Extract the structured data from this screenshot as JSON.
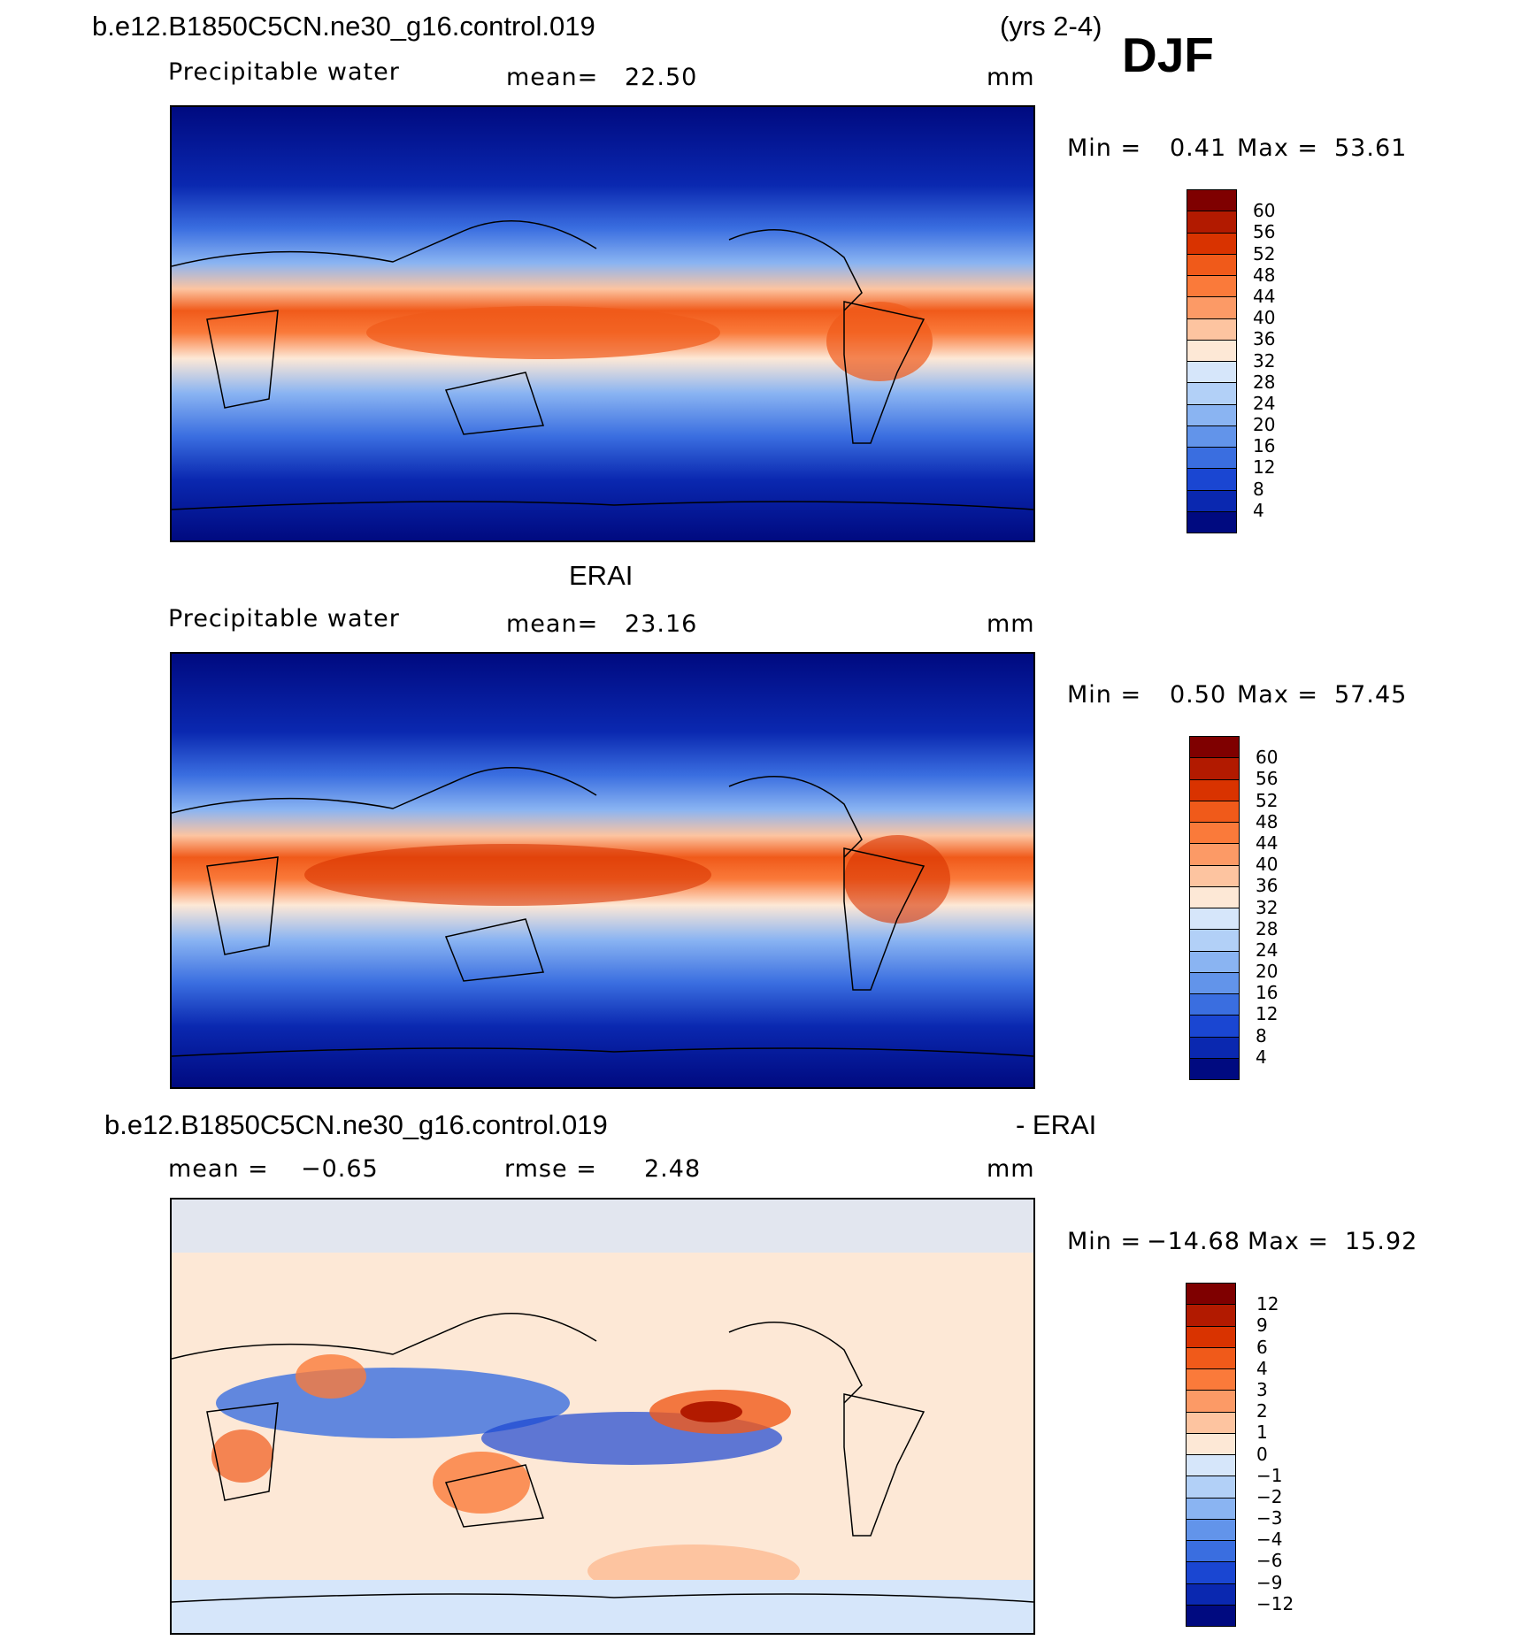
{
  "header": {
    "case_name": "b.e12.B1850C5CN.ne30_g16.control.019",
    "years": "(yrs 2-4)",
    "season": "DJF"
  },
  "panels": [
    {
      "title": "",
      "variable": "Precipitable water",
      "stat_label": "mean=",
      "stat_value": "22.50",
      "stat2_label": "",
      "stat2_value": "",
      "units": "mm",
      "min_label": "Min =",
      "min_value": "0.41",
      "max_label": "Max =",
      "max_value": "53.61",
      "colorbar_labels": [
        "60",
        "56",
        "52",
        "48",
        "44",
        "40",
        "36",
        "32",
        "28",
        "24",
        "20",
        "16",
        "12",
        "8",
        "4"
      ]
    },
    {
      "title": "ERAI",
      "variable": "Precipitable water",
      "stat_label": "mean=",
      "stat_value": "23.16",
      "stat2_label": "",
      "stat2_value": "",
      "units": "mm",
      "min_label": "Min =",
      "min_value": "0.50",
      "max_label": "Max =",
      "max_value": "57.45",
      "colorbar_labels": [
        "60",
        "56",
        "52",
        "48",
        "44",
        "40",
        "36",
        "32",
        "28",
        "24",
        "20",
        "16",
        "12",
        "8",
        "4"
      ]
    },
    {
      "title": "b.e12.B1850C5CN.ne30_g16.control.019",
      "title_suffix": "- ERAI",
      "variable": "",
      "stat_label": "mean =",
      "stat_value": "−0.65",
      "stat2_label": "rmse =",
      "stat2_value": "2.48",
      "units": "mm",
      "min_label": "Min =",
      "min_value": "−14.68",
      "max_label": "Max =",
      "max_value": "15.92",
      "colorbar_labels": [
        "12",
        "9",
        "6",
        "4",
        "3",
        "2",
        "1",
        "0",
        "−1",
        "−2",
        "−3",
        "−4",
        "−6",
        "−9",
        "−12"
      ]
    }
  ],
  "colors": {
    "abs_scale": [
      "#7f0000",
      "#b21a00",
      "#d93300",
      "#f05a1a",
      "#fa7a3a",
      "#fc9a66",
      "#fdc4a0",
      "#fde8d6",
      "#d6e6fa",
      "#b2d0f7",
      "#8ab4f2",
      "#6294ea",
      "#3a6ee0",
      "#1a46d2",
      "#0a28b0",
      "#000a80"
    ],
    "diff_scale": [
      "#7f0000",
      "#b21a00",
      "#d93300",
      "#f05a1a",
      "#fa7a3a",
      "#fc9a66",
      "#fdc4a0",
      "#fde8d6",
      "#d6e6fa",
      "#b2d0f7",
      "#8ab4f2",
      "#6294ea",
      "#3a6ee0",
      "#1a46d2",
      "#0a28b0",
      "#000a80"
    ]
  }
}
